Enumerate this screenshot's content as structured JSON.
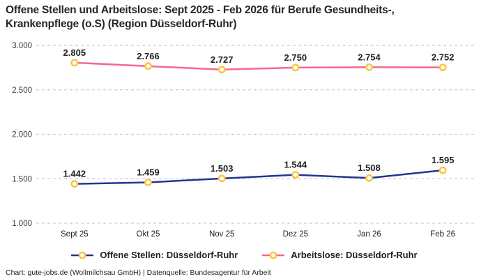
{
  "title": "Offene Stellen und Arbeitslose: Sept 2025 - Feb 2026 für Berufe Gesundheits-, Krankenpflege (o.S) (Region Düsseldorf-Ruhr)",
  "footer": "Chart: gute-jobs.de (Wollmilchsau GmbH) | Datenquelle: Bundesagentur für Arbeit",
  "colors": {
    "grid": "#cccccc",
    "axis_text": "#3c3c3c",
    "label_text": "#222222",
    "marker_fill": "#ffffff",
    "marker_stroke": "#fcc23a"
  },
  "legend": {
    "items": [
      {
        "label": "Offene Stellen: Düsseldorf-Ruhr",
        "color": "#21368f"
      },
      {
        "label": "Arbeitslose: Düsseldorf-Ruhr",
        "color": "#f5688c"
      }
    ]
  },
  "chart_data": {
    "type": "line",
    "title": "Offene Stellen und Arbeitslose: Sept 2025 - Feb 2026 für Berufe Gesundheits-, Krankenpflege (o.S) (Region Düsseldorf-Ruhr)",
    "categories": [
      "Sept 25",
      "Okt 25",
      "Nov 25",
      "Dez 25",
      "Jan 26",
      "Feb 26"
    ],
    "series": [
      {
        "name": "Offene Stellen: Düsseldorf-Ruhr",
        "color": "#21368f",
        "values": [
          1442,
          1459,
          1503,
          1544,
          1508,
          1595
        ],
        "labels": [
          "1.442",
          "1.459",
          "1.503",
          "1.544",
          "1.508",
          "1.595"
        ]
      },
      {
        "name": "Arbeitslose: Düsseldorf-Ruhr",
        "color": "#f5688c",
        "values": [
          2805,
          2766,
          2727,
          2750,
          2754,
          2752
        ],
        "labels": [
          "2.805",
          "2.766",
          "2.727",
          "2.750",
          "2.754",
          "2.752"
        ]
      }
    ],
    "xlabel": "",
    "ylabel": "",
    "ylim": [
      1000,
      3000
    ],
    "yticks": [
      {
        "value": 3000,
        "label": "3.000"
      },
      {
        "value": 2500,
        "label": "2.500"
      },
      {
        "value": 2000,
        "label": "2.000"
      },
      {
        "value": 1500,
        "label": "1.500"
      },
      {
        "value": 1000,
        "label": "1.000"
      }
    ],
    "grid": "dashed-horizontal",
    "legend_position": "bottom",
    "marker": "open-circle"
  }
}
